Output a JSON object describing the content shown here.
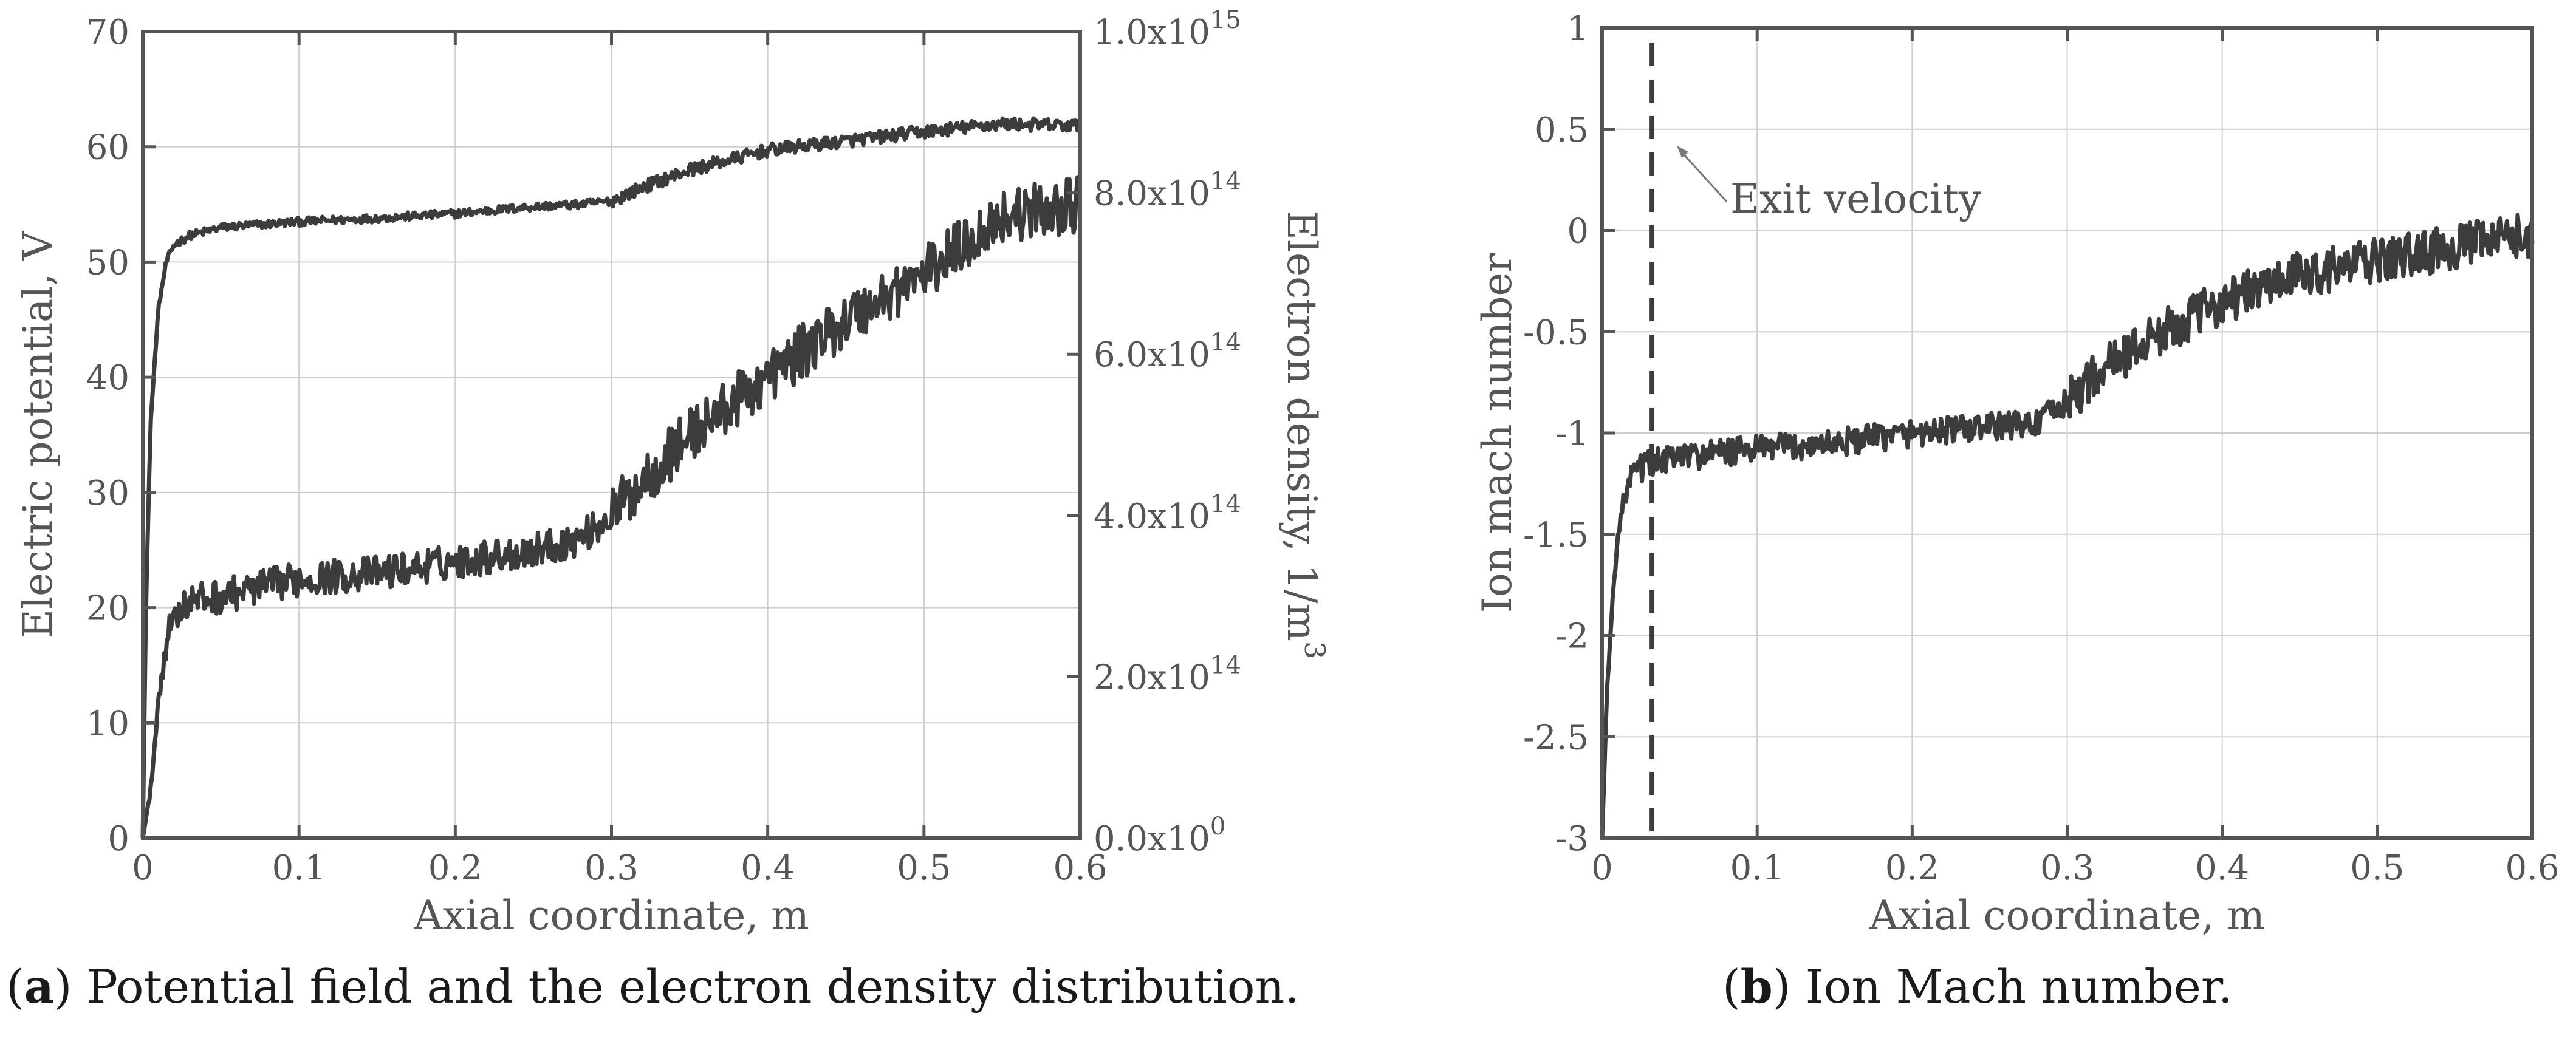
{
  "captions": {
    "a": {
      "letter": "a",
      "text": ") Potential field and the electron density distribution."
    },
    "b": {
      "letter": "b",
      "text": ") Ion Mach number."
    }
  },
  "chart_data": [
    {
      "id": "a",
      "type": "line",
      "title": "Potential field and the electron density distribution",
      "xlabel": "Axial coordinate, m",
      "ylabel": "Electric potential, V",
      "y2label": "Electron density, 1/m",
      "y2label_sup": "3",
      "xlim": [
        0,
        0.6
      ],
      "ylim": [
        0,
        70
      ],
      "y2lim": [
        0,
        1000000000000000.0
      ],
      "xticks": [
        "0",
        "0.1",
        "0.2",
        "0.3",
        "0.4",
        "0.5",
        "0.6"
      ],
      "yticks": [
        "0",
        "10",
        "20",
        "30",
        "40",
        "50",
        "60",
        "70"
      ],
      "y2ticks": [
        {
          "mant": "0.0x10",
          "exp": "0"
        },
        {
          "mant": "2.0x10",
          "exp": "14"
        },
        {
          "mant": "4.0x10",
          "exp": "14"
        },
        {
          "mant": "6.0x10",
          "exp": "14"
        },
        {
          "mant": "8.0x10",
          "exp": "14"
        },
        {
          "mant": "1.0x10",
          "exp": "15"
        }
      ],
      "grid": true,
      "series": [
        {
          "name": "Electric potential",
          "axis": "left",
          "noise": 0.35,
          "x": [
            0,
            0.002,
            0.005,
            0.01,
            0.015,
            0.02,
            0.03,
            0.05,
            0.1,
            0.15,
            0.2,
            0.25,
            0.28,
            0.3,
            0.32,
            0.35,
            0.4,
            0.45,
            0.5,
            0.55,
            0.6
          ],
          "y": [
            0,
            20,
            36,
            46,
            50,
            51.5,
            52.3,
            53,
            53.5,
            53.8,
            54.2,
            54.8,
            55,
            55.3,
            56.5,
            58,
            59.7,
            60.5,
            61.3,
            62,
            61.8
          ]
        },
        {
          "name": "Electron density (left-axis scale)",
          "axis": "left",
          "noise": 1.5,
          "x": [
            0,
            0.005,
            0.01,
            0.015,
            0.02,
            0.03,
            0.05,
            0.1,
            0.15,
            0.2,
            0.25,
            0.28,
            0.3,
            0.32,
            0.35,
            0.4,
            0.45,
            0.5,
            0.55,
            0.6
          ],
          "y": [
            0,
            4,
            12,
            17,
            19.5,
            20.5,
            21,
            22.5,
            23,
            24,
            25,
            26,
            28,
            31,
            35,
            40,
            45,
            49,
            54,
            55
          ]
        }
      ]
    },
    {
      "id": "b",
      "type": "line",
      "title": "Ion Mach number",
      "xlabel": "Axial coordinate, m",
      "ylabel": "Ion mach number",
      "xlim": [
        0,
        0.6
      ],
      "ylim": [
        -3,
        1
      ],
      "xticks": [
        "0",
        "0.1",
        "0.2",
        "0.3",
        "0.4",
        "0.5",
        "0.6"
      ],
      "yticks": [
        "-3",
        "-2.5",
        "-2",
        "-1.5",
        "-1",
        "-0.5",
        "0",
        "0.5",
        "1"
      ],
      "grid": true,
      "annotation": {
        "text": "Exit velocity",
        "x": 0.032
      },
      "series": [
        {
          "name": "Ion Mach number",
          "noise": 0.07,
          "x": [
            0,
            0.003,
            0.007,
            0.01,
            0.015,
            0.02,
            0.03,
            0.05,
            0.1,
            0.15,
            0.2,
            0.25,
            0.28,
            0.3,
            0.32,
            0.35,
            0.4,
            0.45,
            0.5,
            0.55,
            0.6
          ],
          "y": [
            -3,
            -2.3,
            -1.8,
            -1.5,
            -1.3,
            -1.2,
            -1.15,
            -1.12,
            -1.08,
            -1.05,
            -1.0,
            -0.97,
            -0.95,
            -0.85,
            -0.7,
            -0.55,
            -0.35,
            -0.22,
            -0.15,
            -0.08,
            -0.02
          ]
        }
      ]
    }
  ]
}
